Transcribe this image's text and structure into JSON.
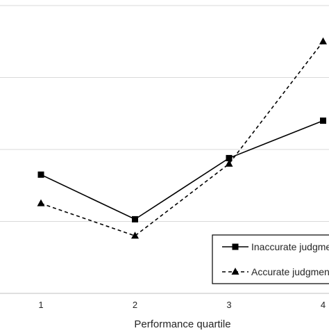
{
  "chart_data": {
    "type": "line",
    "title": "",
    "xlabel": "Performance quartile",
    "ylabel": "",
    "categories": [
      "1",
      "2",
      "3",
      "4"
    ],
    "grid": true,
    "legend_position": "bottom-right",
    "series": [
      {
        "name": "Inaccurate judgment",
        "values": [
          2.65,
          2.03,
          2.88,
          3.4
        ],
        "line_style": "solid",
        "marker": "square",
        "color": "#000000"
      },
      {
        "name": "Accurate judgment",
        "values": [
          2.25,
          1.8,
          2.8,
          4.5
        ],
        "line_style": "dashed",
        "marker": "triangle",
        "color": "#000000"
      }
    ],
    "ylim": [
      1.0,
      5.0
    ],
    "ygrid_values": [
      2,
      3,
      4,
      5
    ]
  },
  "colors": {
    "gridline": "#d9d9d9",
    "axis": "#bfbfbf",
    "text": "#262626",
    "series": "#000000"
  }
}
